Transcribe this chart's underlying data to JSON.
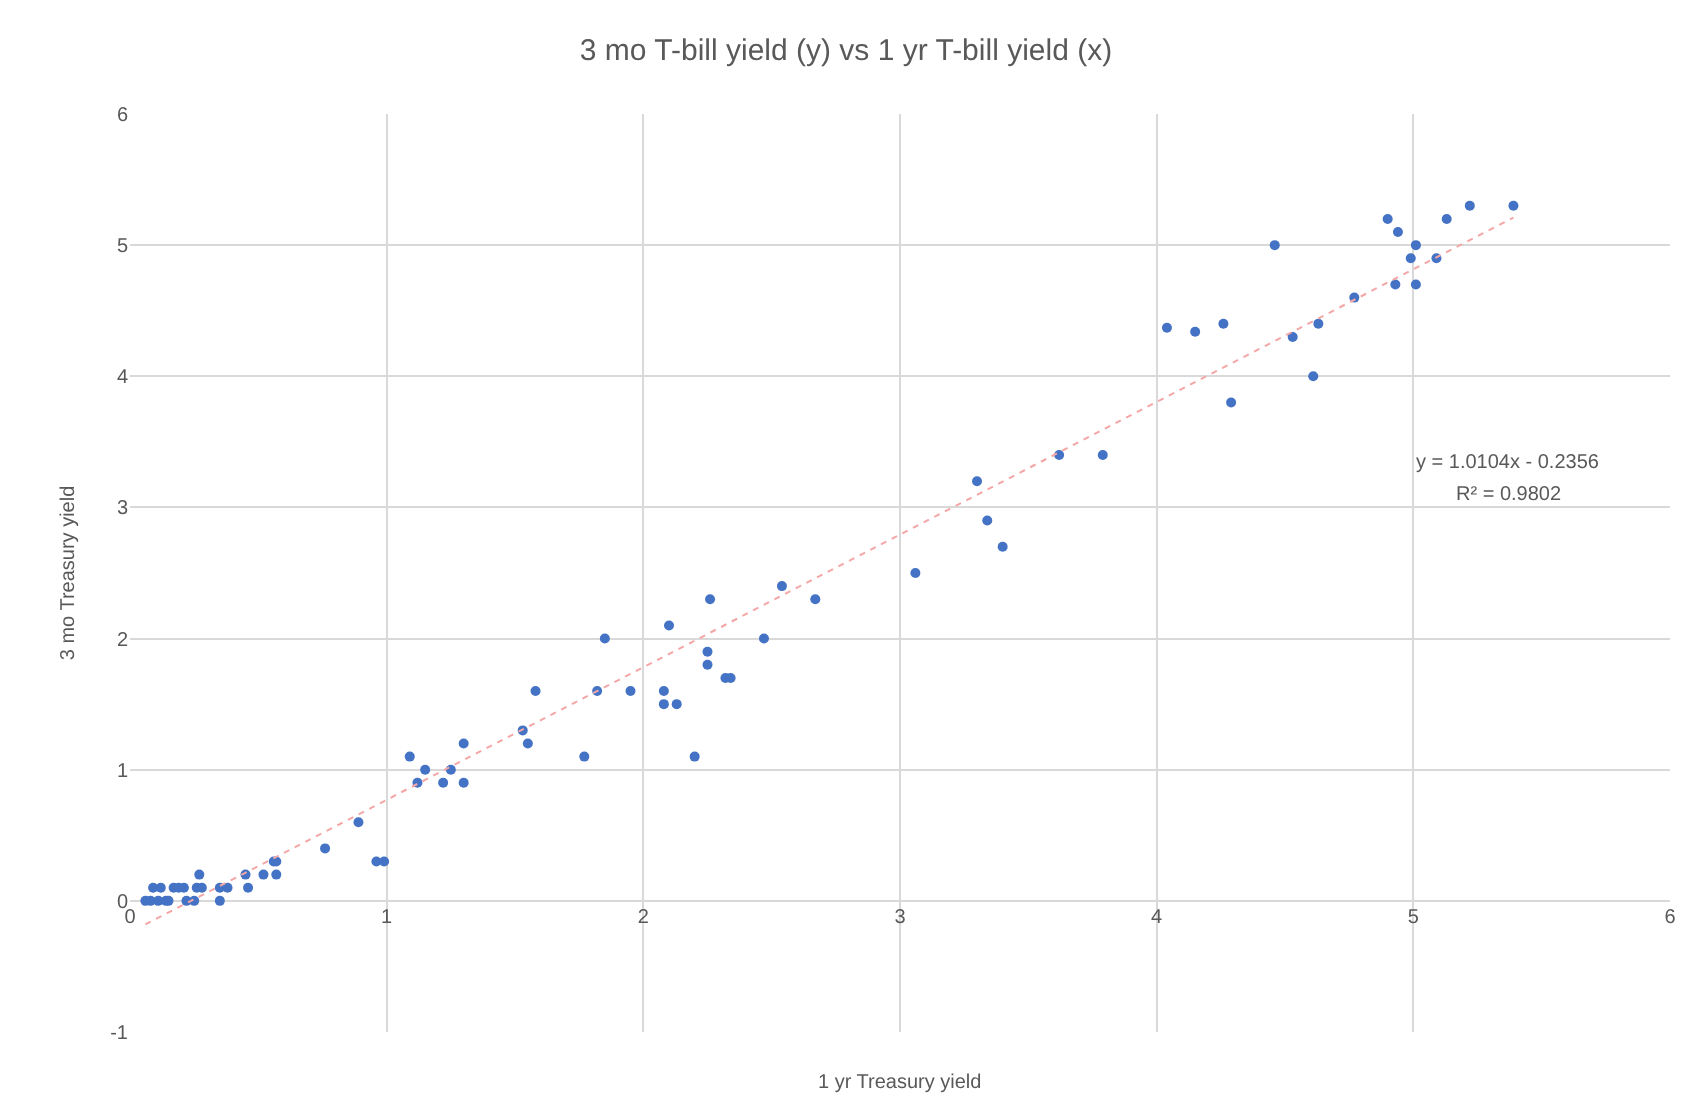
{
  "chart_data": {
    "type": "scatter",
    "title": "3 mo T-bill yield (y) vs 1 yr T-bill yield (x)",
    "xlabel": "1 yr Treasury yield",
    "ylabel": "3 mo Treasury yield",
    "series": [
      {
        "color": "#4472c4",
        "marker": "circle",
        "x": [
          0.06,
          0.08,
          0.09,
          0.11,
          0.12,
          0.14,
          0.15,
          0.17,
          0.19,
          0.21,
          0.22,
          0.25,
          0.26,
          0.27,
          0.28,
          0.35,
          0.35,
          0.38,
          0.45,
          0.46,
          0.52,
          0.56,
          0.57,
          0.57,
          0.76,
          0.89,
          0.96,
          0.99,
          1.09,
          1.12,
          1.15,
          1.22,
          1.25,
          1.3,
          1.3,
          1.53,
          1.55,
          1.58,
          1.77,
          1.82,
          1.85,
          1.95,
          2.08,
          2.08,
          2.1,
          2.13,
          2.2,
          2.25,
          2.25,
          2.26,
          2.32,
          2.34,
          2.47,
          2.54,
          2.67,
          3.06,
          3.3,
          3.34,
          3.4,
          3.62,
          3.79,
          4.04,
          4.15,
          4.26,
          4.29,
          4.46,
          4.53,
          4.61,
          4.63,
          4.77,
          4.9,
          4.93,
          4.94,
          4.99,
          5.01,
          5.01,
          5.09,
          5.13,
          5.22,
          5.39
        ],
        "values": [
          0,
          0,
          0.1,
          0,
          0.1,
          0,
          0,
          0.1,
          0.1,
          0.1,
          0,
          0,
          0.1,
          0.2,
          0.1,
          0,
          0.1,
          0.1,
          0.2,
          0.1,
          0.2,
          0.3,
          0.3,
          0.2,
          0.4,
          0.6,
          0.3,
          0.3,
          1.1,
          0.9,
          1.0,
          0.9,
          1.0,
          1.2,
          0.9,
          1.3,
          1.2,
          1.6,
          1.1,
          1.6,
          2.0,
          1.6,
          1.6,
          1.5,
          2.1,
          1.5,
          1.1,
          1.9,
          1.8,
          2.3,
          1.7,
          1.7,
          2.0,
          2.4,
          2.3,
          2.5,
          3.2,
          2.9,
          2.7,
          3.4,
          3.4,
          4.37,
          4.34,
          4.4,
          3.8,
          5.0,
          4.3,
          4.0,
          4.4,
          4.6,
          5.2,
          4.7,
          5.1,
          4.9,
          5.0,
          4.7,
          4.9,
          5.2,
          5.3,
          5.3
        ]
      },
      {
        "type": "line",
        "color": "#f4a6a6",
        "line_style": "dotted",
        "x": [
          0.06,
          5.39
        ],
        "values": [
          -0.18,
          5.21
        ]
      }
    ],
    "annotations": [
      "y = 1.0104x - 0.2356",
      "R² = 0.9802"
    ],
    "xlim": [
      0,
      6
    ],
    "xticks": [
      0,
      1,
      2,
      3,
      4,
      5,
      6
    ],
    "ylim": [
      -1,
      6
    ],
    "yticks": [
      -1,
      0,
      1,
      2,
      3,
      4,
      5,
      6
    ],
    "grid": true
  }
}
